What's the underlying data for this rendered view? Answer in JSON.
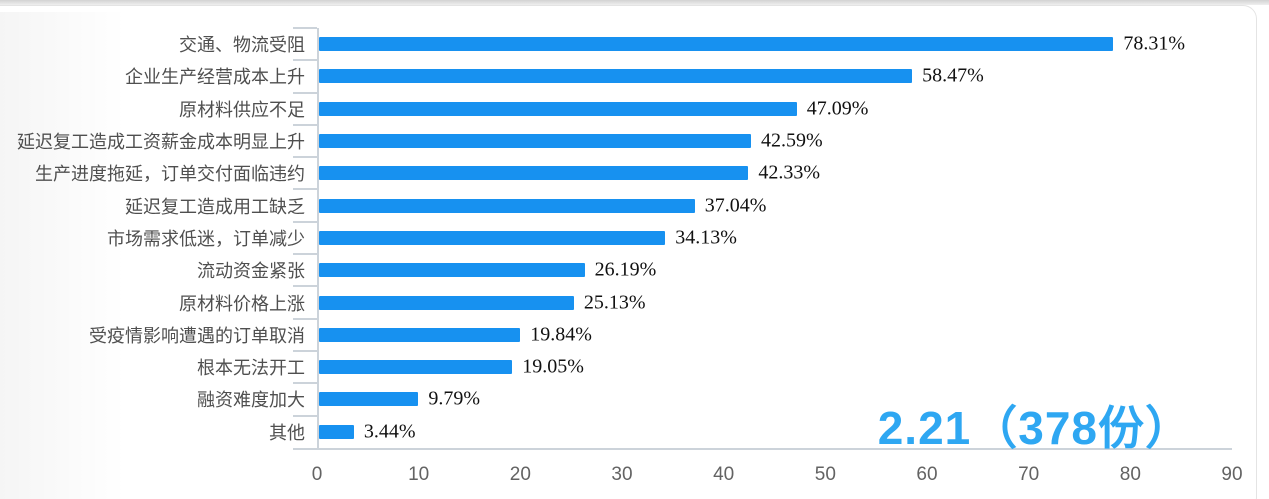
{
  "chart_data": {
    "type": "bar",
    "orientation": "horizontal",
    "title": "",
    "xlabel": "",
    "ylabel": "",
    "categories": [
      "交通、物流受阻",
      "企业生产经营成本上升",
      "原材料供应不足",
      "延迟复工造成工资薪金成本明显上升",
      "生产进度拖延，订单交付面临违约",
      "延迟复工造成用工缺乏",
      "市场需求低迷，订单减少",
      "流动资金紧张",
      "原材料价格上涨",
      "受疫情影响遭遇的订单取消",
      "根本无法开工",
      "融资难度加大",
      "其他"
    ],
    "values": [
      78.31,
      58.47,
      47.09,
      42.59,
      42.33,
      37.04,
      34.13,
      26.19,
      25.13,
      19.84,
      19.05,
      9.79,
      3.44
    ],
    "value_labels": [
      "78.31%",
      "58.47%",
      "47.09%",
      "42.59%",
      "42.33%",
      "37.04%",
      "34.13%",
      "26.19%",
      "25.13%",
      "19.84%",
      "19.05%",
      "9.79%",
      "3.44%"
    ],
    "x_ticks": [
      0,
      10,
      20,
      30,
      40,
      50,
      60,
      70,
      80,
      90
    ],
    "xlim": [
      0,
      90
    ],
    "grid": false,
    "legend": null,
    "annotation": "2.21（378份）",
    "colors": {
      "bar": "#1791f0",
      "annotation": "#2ea7f2",
      "axis": "#ccd3da",
      "category_label": "#4f4f4f",
      "value_label": "#111111",
      "tick_label": "#636363"
    }
  }
}
